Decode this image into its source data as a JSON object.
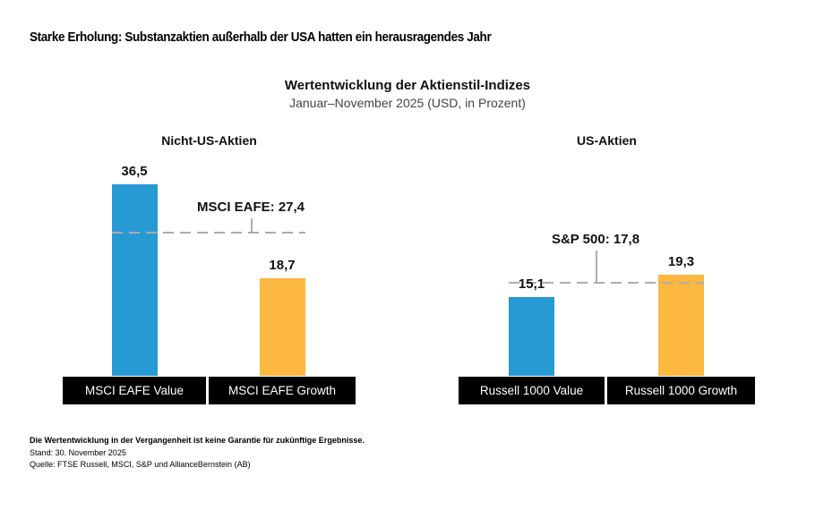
{
  "page": {
    "title": "Starke Erholung: Substanzaktien außerhalb der USA hatten ein herausragendes Jahr",
    "footnote_bold": "Die Wertentwicklung in der Vergangenheit ist keine Garantie für zukünftige Ergebnisse.",
    "as_of": "Stand: 30. November 2025",
    "source": "Quelle: FTSE Russell, MSCI, S&P und AllianceBernstein (AB)"
  },
  "chart_data": {
    "type": "bar",
    "title": "Wertentwicklung der Aktienstil-Indizes",
    "subtitle": "Januar–November 2025 (USD, in Prozent)",
    "unit": "Prozent",
    "ylim": [
      0,
      40
    ],
    "grid": false,
    "legend": "none",
    "groups": [
      {
        "heading": "Nicht-US-Aktien",
        "categories": [
          "MSCI EAFE Value",
          "MSCI EAFE Growth"
        ],
        "bars": [
          {
            "label": "MSCI EAFE Value",
            "value": 36.5,
            "display": "36,5",
            "color": "#2799D3"
          },
          {
            "label": "MSCI EAFE Growth",
            "value": 18.7,
            "display": "18,7",
            "color": "#FDB841"
          }
        ],
        "reference": {
          "label": "MSCI EAFE: 27,4",
          "value": 27.4
        }
      },
      {
        "heading": "US-Aktien",
        "categories": [
          "Russell 1000 Value",
          "Russell 1000 Growth"
        ],
        "bars": [
          {
            "label": "Russell 1000 Value",
            "value": 15.1,
            "display": "15,1",
            "color": "#2799D3"
          },
          {
            "label": "Russell 1000 Growth",
            "value": 19.3,
            "display": "19,3",
            "color": "#FDB841"
          }
        ],
        "reference": {
          "label": "S&P 500: 17,8",
          "value": 17.8
        }
      }
    ]
  },
  "colors": {
    "value_bar": "#2799D3",
    "growth_bar": "#FDB841",
    "reference_line": "#ADADAD",
    "category_box_bg": "#000000",
    "category_box_text": "#FFFFFF",
    "subtitle_text": "#444444"
  }
}
